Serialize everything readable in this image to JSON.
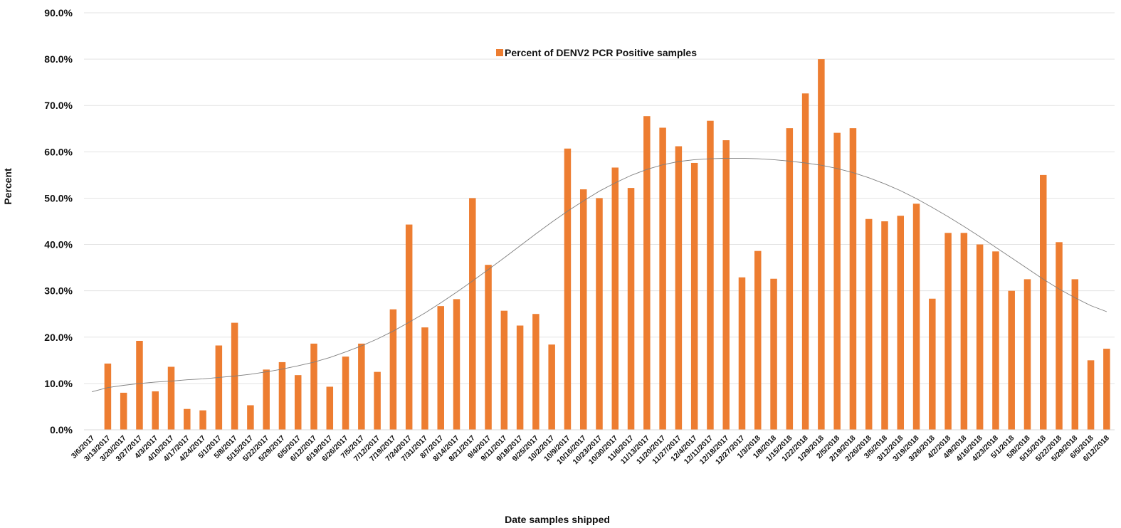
{
  "chart_data": {
    "type": "bar",
    "xlabel": "Date samples shipped",
    "ylabel": "Percent",
    "ylim": [
      0,
      90
    ],
    "yticks": [
      "0.0%",
      "10.0%",
      "20.0%",
      "30.0%",
      "40.0%",
      "50.0%",
      "60.0%",
      "70.0%",
      "80.0%",
      "90.0%"
    ],
    "grid": true,
    "legend_position": "top-center",
    "bar_color": "#ED7D31",
    "trendline_color": "#7f7f7f",
    "categories": [
      "3/6/2017",
      "3/13/2017",
      "3/20/2017",
      "3/27/2017",
      "4/3/2017",
      "4/10/2017",
      "4/17/2017",
      "4/24/2017",
      "5/1/2017",
      "5/8/2017",
      "5/15/2017",
      "5/22/2017",
      "5/29/2017",
      "6/5/2017",
      "6/12/2017",
      "6/19/2017",
      "6/26/2017",
      "7/5/2017",
      "7/12/2017",
      "7/19/2017",
      "7/24/2017",
      "7/31/2017",
      "8/7/2017",
      "8/14/2017",
      "8/21/2017",
      "9/4/2017",
      "9/11/2017",
      "9/18/2017",
      "9/25/2017",
      "10/2/2017",
      "10/9/2017",
      "10/16/2017",
      "10/23/2017",
      "10/30/2017",
      "11/6/2017",
      "11/13/2017",
      "11/20/2017",
      "11/27/2017",
      "12/4/2017",
      "12/11/2017",
      "12/18/2017",
      "12/27/2017",
      "1/3/2018",
      "1/8/2018",
      "1/15/2018",
      "1/22/2018",
      "1/29/2018",
      "2/5/2018",
      "2/19/2018",
      "2/26/2018",
      "3/5/2018",
      "3/12/2018",
      "3/19/2018",
      "3/26/2018",
      "4/2/2018",
      "4/9/2018",
      "4/16/2018",
      "4/23/2018",
      "5/1/2018",
      "5/8/2018",
      "5/15/2018",
      "5/22/2018",
      "5/29/2018",
      "6/5/2018",
      "6/12/2018"
    ],
    "series": [
      {
        "name": "Percent of DENV2 PCR Positive samples",
        "values": [
          0,
          14.3,
          8,
          19.2,
          8.3,
          13.6,
          4.5,
          4.2,
          18.2,
          23.1,
          5.3,
          13,
          14.6,
          11.8,
          18.6,
          9.3,
          15.8,
          18.6,
          12.5,
          26,
          44.3,
          22.1,
          26.7,
          28.2,
          50,
          35.6,
          25.7,
          22.5,
          25,
          18.4,
          60.7,
          51.9,
          50,
          56.6,
          52.2,
          67.7,
          65.2,
          61.2,
          57.6,
          66.7,
          62.5,
          32.9,
          38.6,
          32.6,
          65.1,
          72.6,
          80,
          64.1,
          65.1,
          45.5,
          45,
          46.2,
          48.8,
          28.3,
          42.5,
          42.5,
          40,
          38.5,
          30,
          32.5,
          55,
          40.5,
          32.5,
          15,
          17.5
        ]
      }
    ],
    "trendline": {
      "type": "polynomial",
      "values": [
        8.2,
        9.1,
        9.6,
        10.0,
        10.3,
        10.5,
        10.8,
        11.0,
        11.3,
        11.6,
        12.0,
        12.5,
        13.1,
        13.8,
        14.6,
        15.6,
        16.8,
        18.1,
        19.6,
        21.3,
        23.2,
        25.2,
        27.4,
        29.7,
        32.1,
        34.6,
        37.1,
        39.7,
        42.3,
        44.8,
        47.2,
        49.4,
        51.5,
        53.3,
        54.9,
        56.2,
        57.2,
        57.9,
        58.3,
        58.5,
        58.6,
        58.6,
        58.5,
        58.3,
        58.0,
        57.6,
        57.1,
        56.4,
        55.5,
        54.4,
        53.1,
        51.6,
        49.9,
        48.0,
        46.0,
        43.9,
        41.7,
        39.4,
        37.1,
        34.8,
        32.5,
        30.4,
        28.5,
        26.8,
        25.5
      ]
    }
  }
}
